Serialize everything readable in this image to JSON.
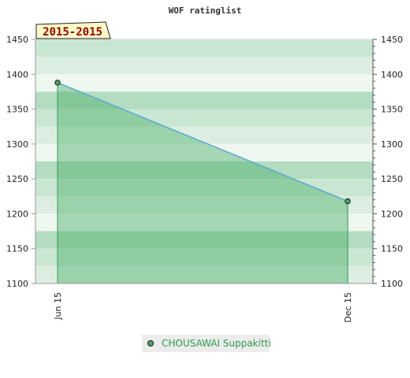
{
  "chart_data": {
    "type": "area",
    "title": "WOF ratinglist",
    "period_label": "2015-2015",
    "x": [
      "Jun 15",
      "Dec 15"
    ],
    "series": [
      {
        "name": "CHOUSAWAI Suppakitti",
        "values": [
          1388,
          1218
        ]
      }
    ],
    "ylim": [
      1100,
      1450
    ],
    "y_ticks": [
      1100,
      1150,
      1200,
      1250,
      1300,
      1350,
      1400,
      1450
    ],
    "y_ticks_right": [
      1100,
      1150,
      1200,
      1250,
      1300,
      1350,
      1400,
      1450
    ],
    "grid": true,
    "legend_position": "bottom-center",
    "colors": {
      "line": "#5aa9d6",
      "area_fill": "#4caf6a",
      "marker": "#4aa864",
      "band_dark": "#b3dcc0",
      "band_mid": "#c9e6d2",
      "band_light": "#dbeee1",
      "band_lightest": "#eef7f0",
      "period_bg": "#fffbc8",
      "period_text": "#990000",
      "legend_text": "#2f9a4a"
    }
  }
}
